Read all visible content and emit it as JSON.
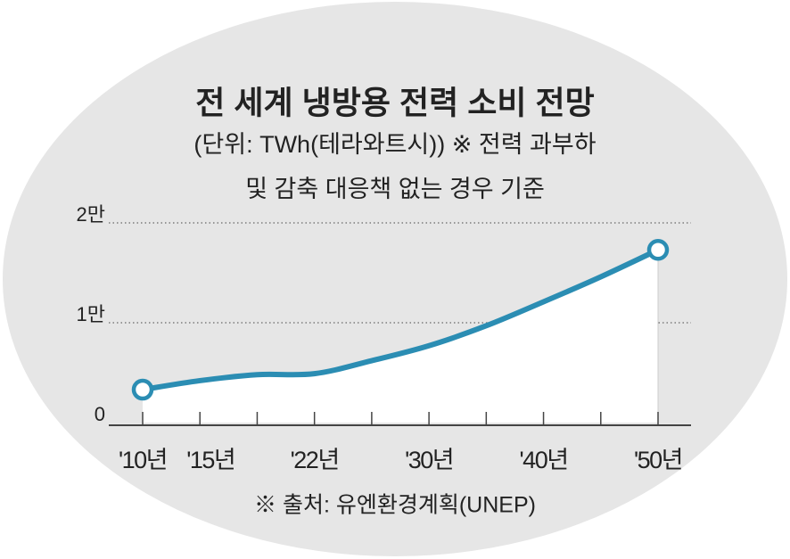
{
  "chart_data": {
    "type": "line",
    "title": "전 세계 냉방용 전력 소비 전망",
    "subtitle": [
      "(단위: TWh(테라와트시)) ※ 전력 과부하",
      "및 감축 대응책 없는 경우 기준"
    ],
    "source": "※ 출처: 유엔환경계획(UNEP)",
    "categories": [
      "'10년",
      "'15년",
      null,
      "'22년",
      null,
      "'30년",
      null,
      "'40년",
      null,
      "'50년"
    ],
    "series": [
      {
        "color": "#2b8db3",
        "values": [
          3300,
          4200,
          4800,
          4900,
          6200,
          7700,
          9700,
          12100,
          14600,
          17300
        ]
      }
    ],
    "ylim": [
      0,
      20000
    ],
    "yticks": [
      0,
      {
        "value": 10000,
        "label": "1만"
      },
      {
        "value": 20000,
        "label": "2만"
      }
    ],
    "grid": true,
    "fill_under": "#ffffff",
    "background": "#e6e6e6"
  }
}
